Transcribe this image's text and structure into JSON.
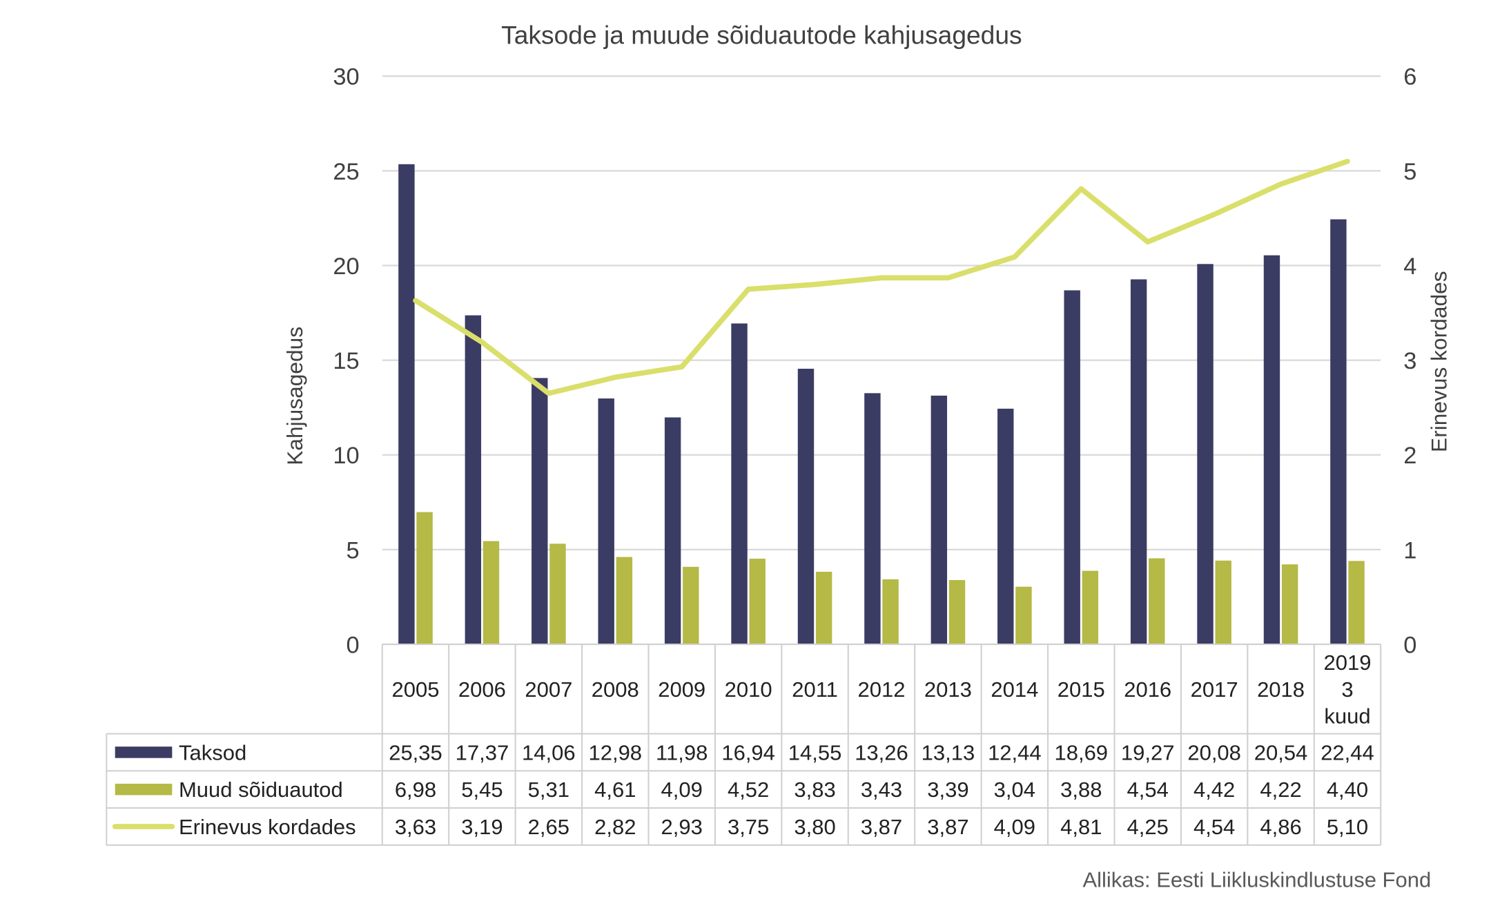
{
  "chart_data": {
    "type": "bar",
    "title": "Taksode ja muude sõiduautode kahjusagedus",
    "ylabel": "Kahjusagedus",
    "y2label": "Erinevus kordades",
    "ylim": [
      0,
      30
    ],
    "y2lim": [
      0,
      6
    ],
    "yticks": [
      "0",
      "5",
      "10",
      "15",
      "20",
      "25",
      "30"
    ],
    "y2ticks": [
      "0",
      "1",
      "2",
      "3",
      "4",
      "5",
      "6"
    ],
    "grid": true,
    "legend": "data-table",
    "categories": [
      "2005",
      "2006",
      "2007",
      "2008",
      "2009",
      "2010",
      "2011",
      "2012",
      "2013",
      "2014",
      "2015",
      "2016",
      "2017",
      "2018",
      "2019 3 kuud"
    ],
    "category_lines": [
      [
        "2005"
      ],
      [
        "2006"
      ],
      [
        "2007"
      ],
      [
        "2008"
      ],
      [
        "2009"
      ],
      [
        "2010"
      ],
      [
        "2011"
      ],
      [
        "2012"
      ],
      [
        "2013"
      ],
      [
        "2014"
      ],
      [
        "2015"
      ],
      [
        "2016"
      ],
      [
        "2017"
      ],
      [
        "2018"
      ],
      [
        "2019",
        "3",
        "kuud"
      ]
    ],
    "series": [
      {
        "name": "Taksod",
        "type": "bar",
        "axis": "left",
        "color": "#3b3c64",
        "values": [
          25.35,
          17.37,
          14.06,
          12.98,
          11.98,
          16.94,
          14.55,
          13.26,
          13.13,
          12.44,
          18.69,
          19.27,
          20.08,
          20.54,
          22.44
        ],
        "labels": [
          "25,35",
          "17,37",
          "14,06",
          "12,98",
          "11,98",
          "16,94",
          "14,55",
          "13,26",
          "13,13",
          "12,44",
          "18,69",
          "19,27",
          "20,08",
          "20,54",
          "22,44"
        ]
      },
      {
        "name": "Muud sõiduautod",
        "type": "bar",
        "axis": "left",
        "color": "#b5b946",
        "values": [
          6.98,
          5.45,
          5.31,
          4.61,
          4.09,
          4.52,
          3.83,
          3.43,
          3.39,
          3.04,
          3.88,
          4.54,
          4.42,
          4.22,
          4.4
        ],
        "labels": [
          "6,98",
          "5,45",
          "5,31",
          "4,61",
          "4,09",
          "4,52",
          "3,83",
          "3,43",
          "3,39",
          "3,04",
          "3,88",
          "4,54",
          "4,42",
          "4,22",
          "4,40"
        ]
      },
      {
        "name": "Erinevus kordades",
        "type": "line",
        "axis": "right",
        "color": "#d9df6a",
        "values": [
          3.63,
          3.19,
          2.65,
          2.82,
          2.93,
          3.75,
          3.8,
          3.87,
          3.87,
          4.09,
          4.81,
          4.25,
          4.54,
          4.86,
          5.1
        ],
        "labels": [
          "3,63",
          "3,19",
          "2,65",
          "2,82",
          "2,93",
          "3,75",
          "3,80",
          "3,87",
          "3,87",
          "4,09",
          "4,81",
          "4,25",
          "4,54",
          "4,86",
          "5,10"
        ]
      }
    ],
    "source": "Allikas: Eesti Liikluskindlustuse Fond"
  }
}
